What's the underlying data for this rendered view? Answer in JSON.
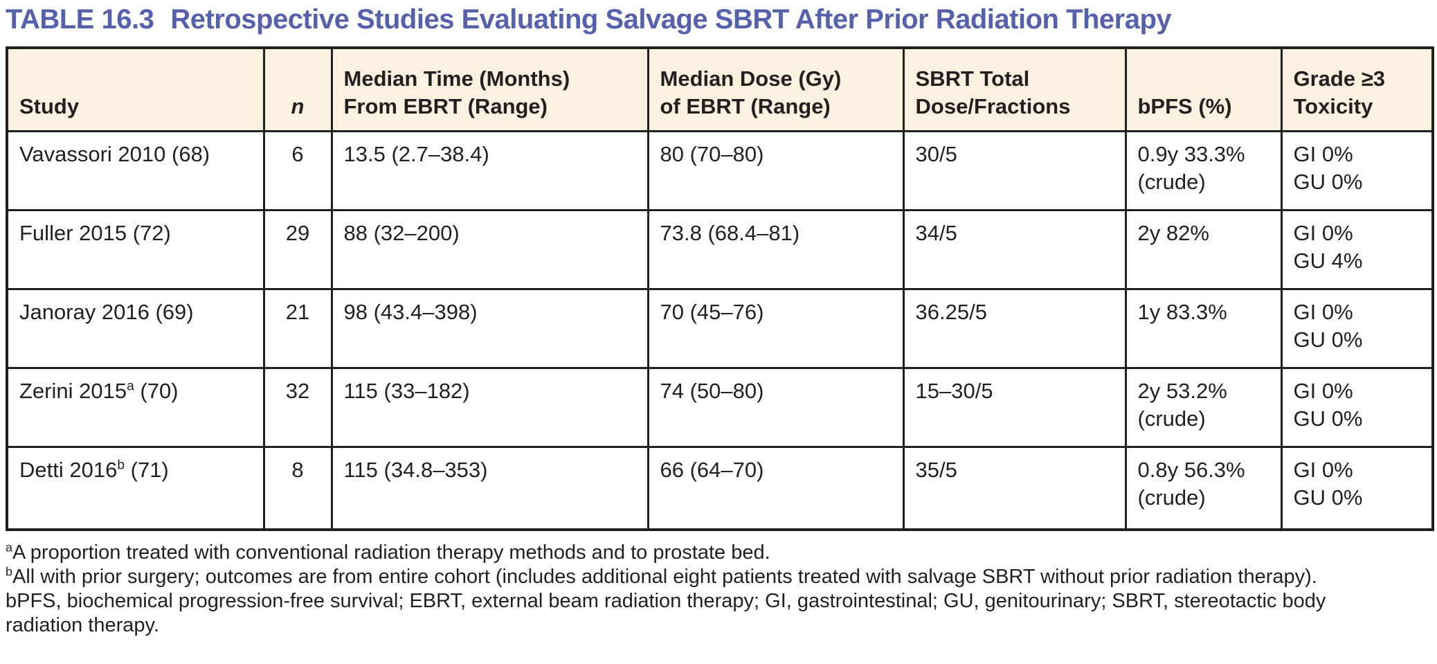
{
  "colors": {
    "title_accent": "#5661ab",
    "header_background": "#faf1e0",
    "border": "#221f1f",
    "text": "#231f20"
  },
  "title": {
    "label": "TABLE 16.3",
    "text": "Retrospective Studies Evaluating Salvage SBRT After Prior Radiation Therapy"
  },
  "table": {
    "columns": [
      {
        "line1": "Study",
        "line2": ""
      },
      {
        "line1": "n",
        "line2": ""
      },
      {
        "line1": "Median Time (Months)",
        "line2": "From EBRT (Range)"
      },
      {
        "line1": "Median Dose (Gy)",
        "line2": "of EBRT (Range)"
      },
      {
        "line1": "SBRT Total",
        "line2": "Dose/Fractions"
      },
      {
        "line1": "bPFS (%)",
        "line2": ""
      },
      {
        "line1": "Grade ≥3",
        "line2": "Toxicity"
      }
    ],
    "rows": [
      {
        "study": "Vavassori 2010",
        "study_sup": "",
        "study_ref": " (68)",
        "n": "6",
        "median_time": "13.5 (2.7–38.4)",
        "median_dose": "80 (70–80)",
        "sbrt_dose": "30/5",
        "bpfs_line1": "0.9y 33.3%",
        "bpfs_line2": "(crude)",
        "tox_line1": "GI 0%",
        "tox_line2": "GU 0%"
      },
      {
        "study": "Fuller 2015",
        "study_sup": "",
        "study_ref": " (72)",
        "n": "29",
        "median_time": "88 (32–200)",
        "median_dose": "73.8 (68.4–81)",
        "sbrt_dose": "34/5",
        "bpfs_line1": "2y 82%",
        "bpfs_line2": "",
        "tox_line1": "GI 0%",
        "tox_line2": "GU 4%"
      },
      {
        "study": "Janoray 2016",
        "study_sup": "",
        "study_ref": " (69)",
        "n": "21",
        "median_time": "98 (43.4–398)",
        "median_dose": "70 (45–76)",
        "sbrt_dose": "36.25/5",
        "bpfs_line1": "1y 83.3%",
        "bpfs_line2": "",
        "tox_line1": "GI 0%",
        "tox_line2": "GU 0%"
      },
      {
        "study": "Zerini 2015",
        "study_sup": "a",
        "study_ref": " (70)",
        "n": "32",
        "median_time": "115 (33–182)",
        "median_dose": "74 (50–80)",
        "sbrt_dose": "15–30/5",
        "bpfs_line1": "2y 53.2%",
        "bpfs_line2": "(crude)",
        "tox_line1": "GI 0%",
        "tox_line2": "GU 0%"
      },
      {
        "study": "Detti 2016",
        "study_sup": "b",
        "study_ref": " (71)",
        "n": "8",
        "median_time": "115 (34.8–353)",
        "median_dose": "66 (64–70)",
        "sbrt_dose": "35/5",
        "bpfs_line1": "0.8y 56.3%",
        "bpfs_line2": "(crude)",
        "tox_line1": "GI 0%",
        "tox_line2": "GU 0%"
      }
    ]
  },
  "footnotes": [
    {
      "sup": "a",
      "text": "A proportion treated with conventional radiation therapy methods and to prostate bed."
    },
    {
      "sup": "b",
      "text": "All with prior surgery; outcomes are from entire cohort (includes additional eight patients treated with salvage SBRT without prior radiation therapy)."
    },
    {
      "sup": "",
      "text": "bPFS, biochemical progression-free survival; EBRT, external beam radiation therapy; GI, gastrointestinal; GU, genitourinary; SBRT, stereotactic body radiation therapy."
    }
  ]
}
